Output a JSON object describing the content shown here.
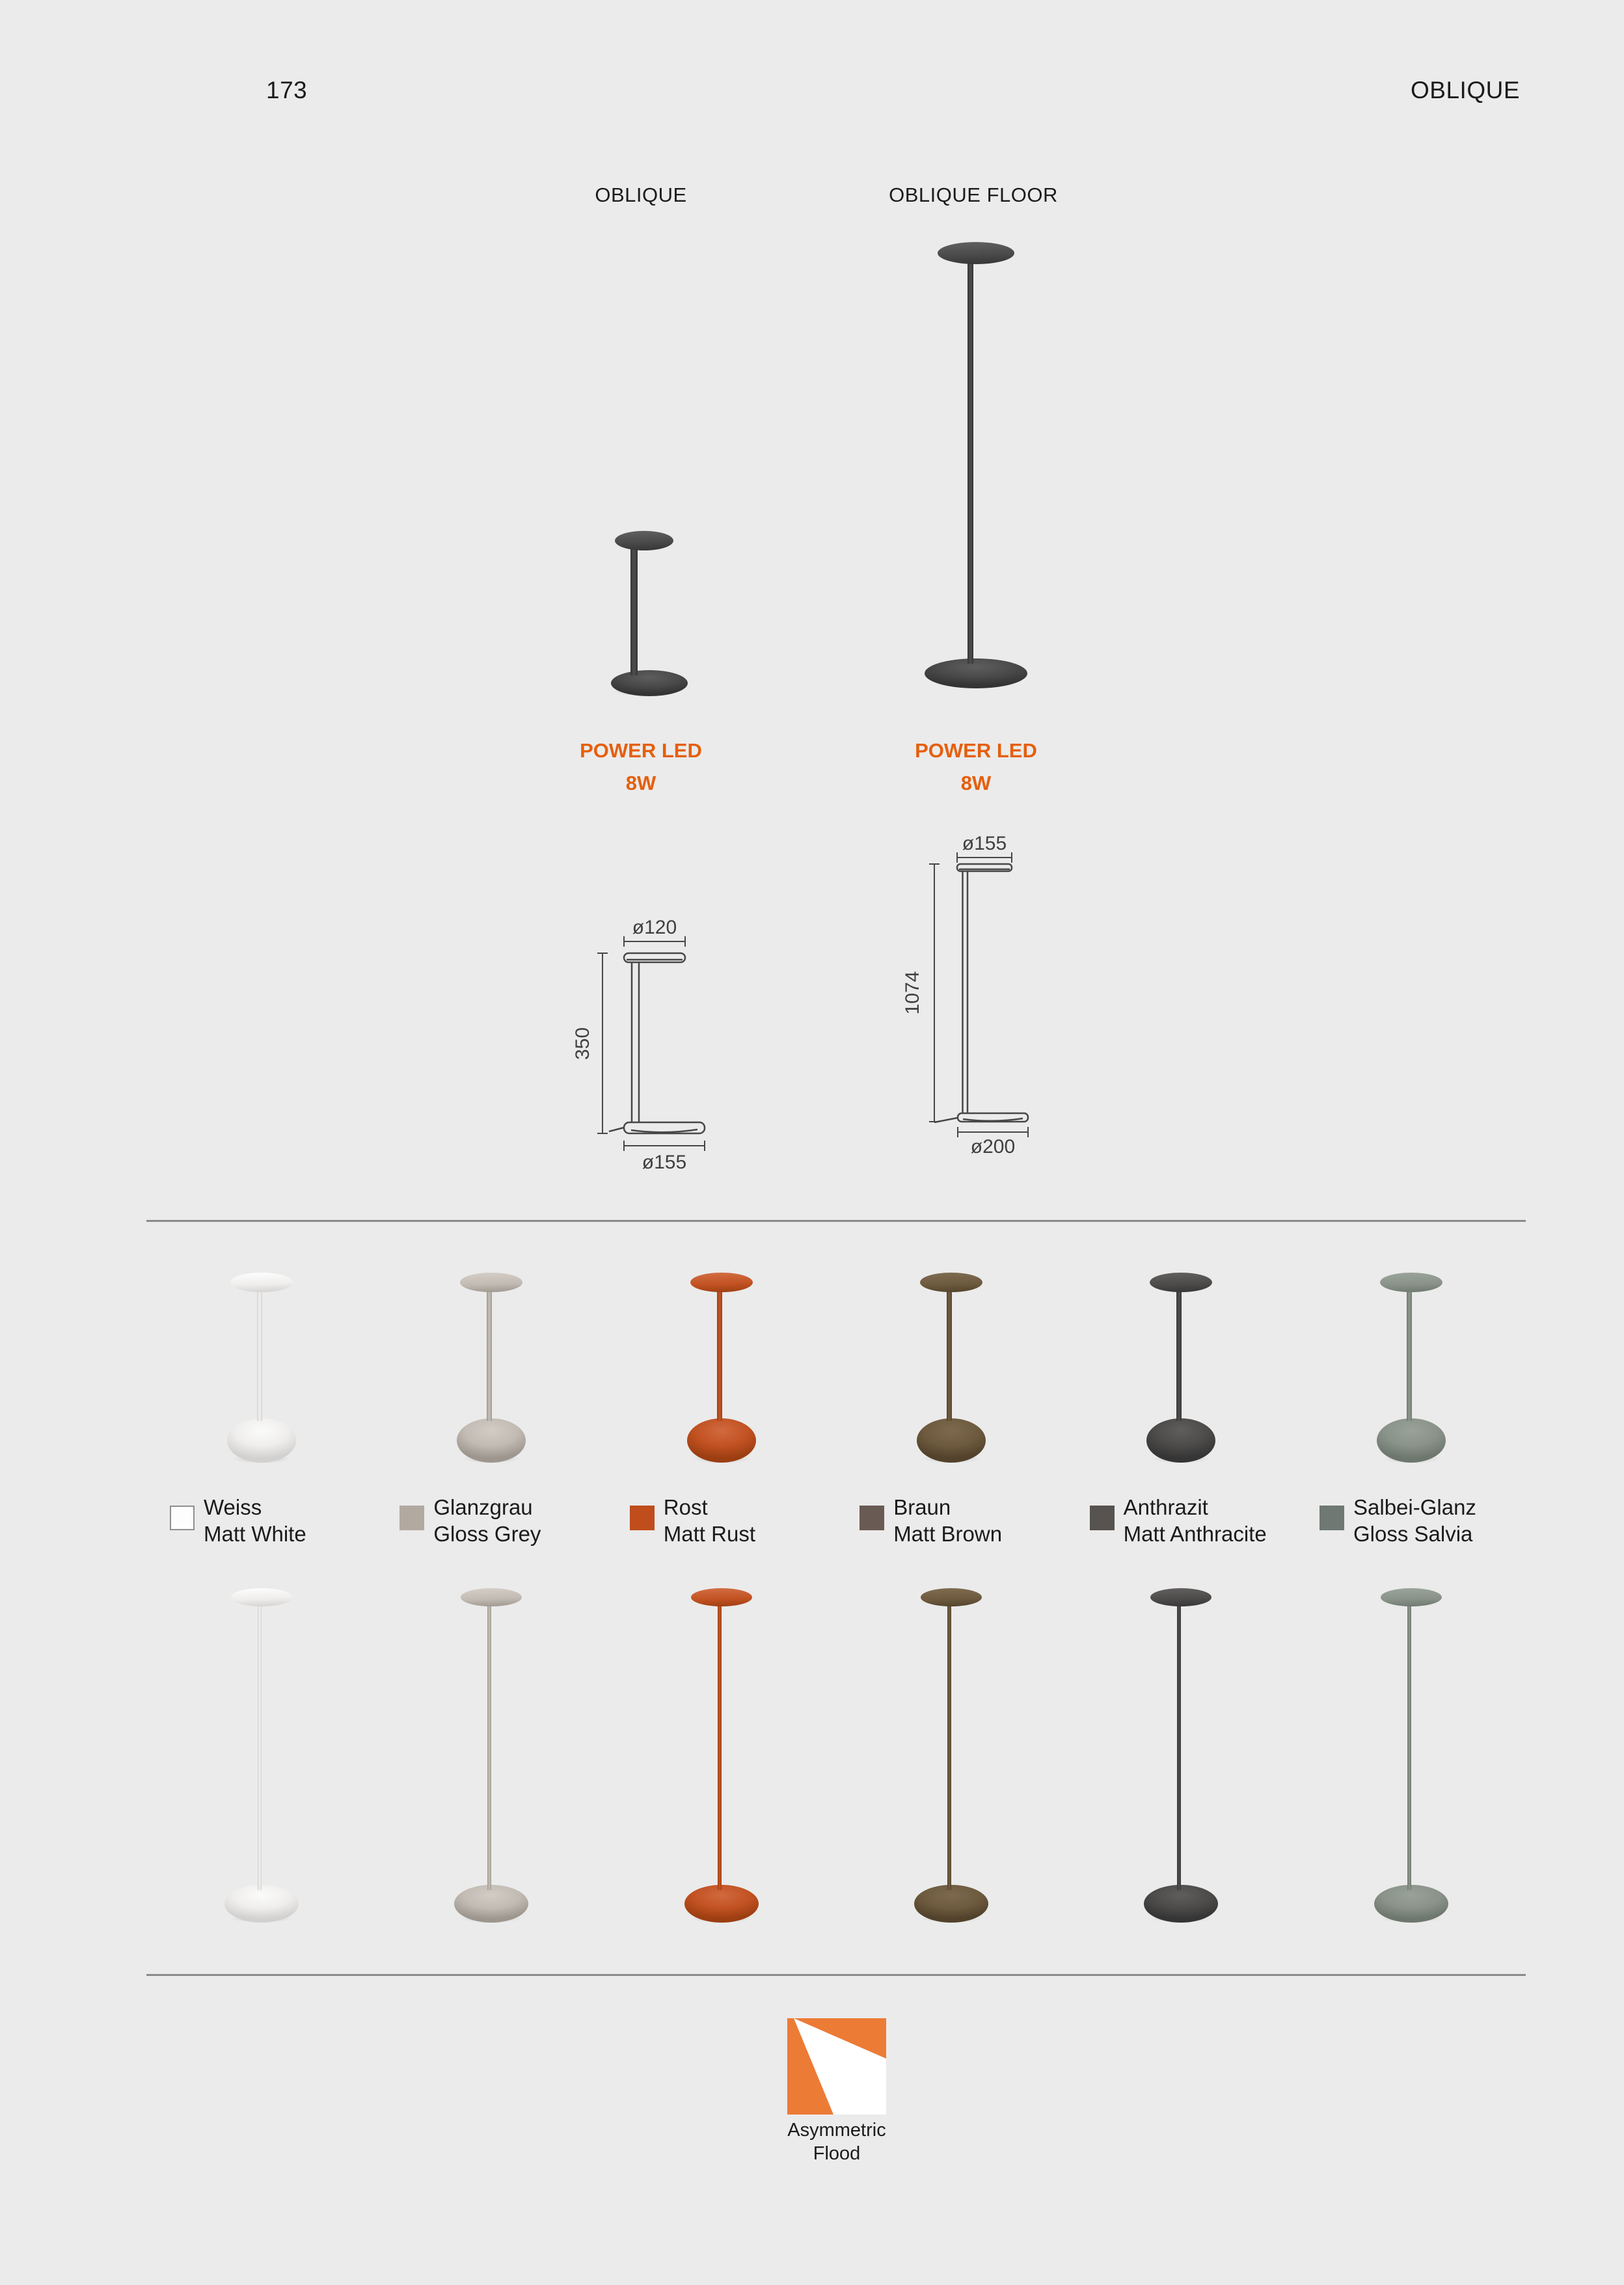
{
  "page": {
    "number": "173",
    "title": "OBLIQUE"
  },
  "products": [
    {
      "name": "OBLIQUE",
      "power": "POWER LED",
      "wattage": "8W",
      "dims": {
        "head": "ø120",
        "height": "350",
        "base": "ø155"
      },
      "photo": {
        "light": "#5d5d5d",
        "main": "#4a4a4a",
        "shade": "#343434"
      }
    },
    {
      "name": "OBLIQUE FLOOR",
      "power": "POWER LED",
      "wattage": "8W",
      "dims": {
        "head": "ø155",
        "height": "1074",
        "base": "ø200"
      },
      "photo": {
        "light": "#5d5d5d",
        "main": "#4a4a4a",
        "shade": "#343434"
      }
    }
  ],
  "finishes": [
    {
      "name_de": "Weiss",
      "name_en": "Matt White",
      "swatch": "#fdfdfd",
      "swatch_border": "#8f8f8f",
      "light": "#fbfbfb",
      "main": "#efeeec",
      "shade": "#d2d1cf"
    },
    {
      "name_de": "Glanzgrau",
      "name_en": "Gloss Grey",
      "swatch": "#b2a9a1",
      "light": "#d2ccc5",
      "main": "#c2bbb3",
      "shade": "#9d968e"
    },
    {
      "name_de": "Rost",
      "name_en": "Matt Rust",
      "swatch": "#c04d1c",
      "light": "#d06a3f",
      "main": "#c25222",
      "shade": "#9c3e12"
    },
    {
      "name_de": "Braun",
      "name_en": "Matt Brown",
      "swatch": "#6a5a54",
      "light": "#7d6a4e",
      "main": "#6e5b3f",
      "shade": "#52422b"
    },
    {
      "name_de": "Anthrazit",
      "name_en": "Matt Anthracite",
      "swatch": "#575350",
      "light": "#605e5d",
      "main": "#4c4b4a",
      "shade": "#363535"
    },
    {
      "name_de": "Salbei-Glanz",
      "name_en": "Gloss Salvia",
      "swatch": "#6f7873",
      "light": "#99a298",
      "main": "#8a938a",
      "shade": "#6e776e"
    }
  ],
  "beam": {
    "line1": "Asymmetric",
    "line2": "Flood",
    "orange": "#ec7b36"
  },
  "colors": {
    "background": "#ebebeb",
    "text": "#1b1b1b",
    "accent": "#e55f0e",
    "divider": "#8a8a8a"
  }
}
